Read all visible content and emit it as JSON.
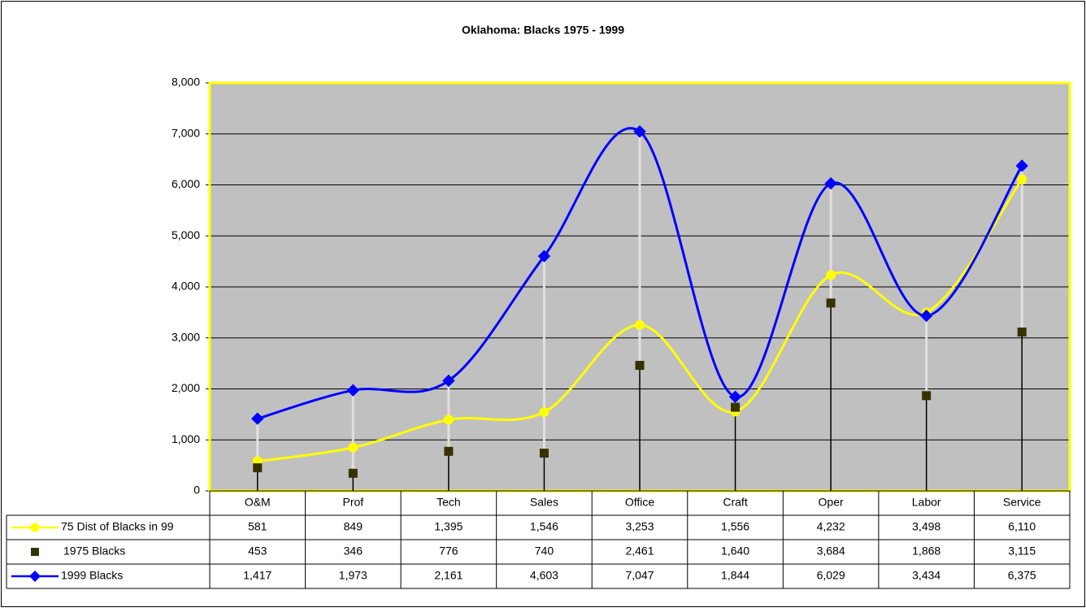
{
  "chart_data": {
    "type": "line",
    "title": "Oklahoma: Blacks 1975 - 1999",
    "categories": [
      "O&M",
      "Prof",
      "Tech",
      "Sales",
      "Office",
      "Craft",
      "Oper",
      "Labor",
      "Service"
    ],
    "series": [
      {
        "name": "75 Dist of Blacks in 99",
        "color": "#ffff00",
        "marker": "circle",
        "line": true,
        "values": [
          581,
          849,
          1395,
          1546,
          3253,
          1556,
          4232,
          3498,
          6110
        ],
        "value_labels": [
          "581",
          "849",
          "1,395",
          "1,546",
          "3,253",
          "1,556",
          "4,232",
          "3,498",
          "6,110"
        ]
      },
      {
        "name": "1975 Blacks",
        "color": "#333300",
        "marker": "square",
        "line": false,
        "values": [
          453,
          346,
          776,
          740,
          2461,
          1640,
          3684,
          1868,
          3115
        ],
        "value_labels": [
          "453",
          "346",
          "776",
          "740",
          "2,461",
          "1,640",
          "3,684",
          "1,868",
          "3,115"
        ]
      },
      {
        "name": "1999 Blacks",
        "color": "#0000ff",
        "marker": "diamond",
        "line": true,
        "values": [
          1417,
          1973,
          2161,
          4603,
          7047,
          1844,
          6029,
          3434,
          6375
        ],
        "value_labels": [
          "1,417",
          "1,973",
          "2,161",
          "4,603",
          "7,047",
          "1,844",
          "6,029",
          "3,434",
          "6,375"
        ]
      }
    ],
    "ylim": [
      0,
      8000
    ],
    "yticks": [
      0,
      {
        "value": 1000,
        "label": "1,000"
      },
      {
        "value": 2000,
        "label": "2,000"
      },
      {
        "value": 3000,
        "label": "3,000"
      },
      {
        "value": 4000,
        "label": "4,000"
      },
      {
        "value": 5000,
        "label": "5,000"
      },
      {
        "value": 6000,
        "label": "6,000"
      },
      {
        "value": 7000,
        "label": "7,000"
      },
      {
        "value": 8000,
        "label": "8,000"
      }
    ],
    "grid": true,
    "smooth": true,
    "plot_background": "#c0c0c0",
    "plot_border": "#ffff00"
  }
}
